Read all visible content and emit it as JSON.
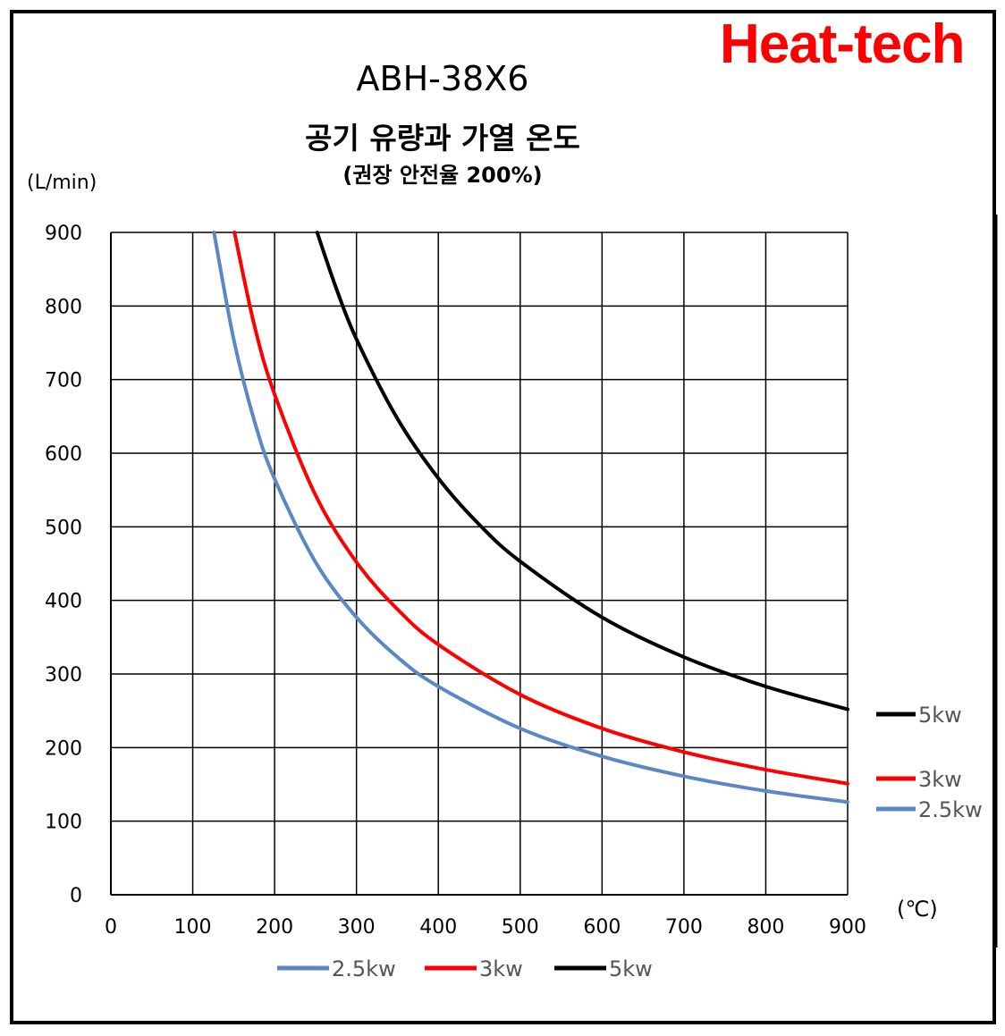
{
  "brand": "Heat-tech",
  "chart_data": {
    "type": "line",
    "title": "ABH-38X6",
    "subtitle": "공기 유량과 가열 온도",
    "subtitle2": "(권장 안전율 200%)",
    "ylabel": "(L/min)",
    "xlabel": "(℃)",
    "xlim": [
      0,
      900
    ],
    "ylim": [
      0,
      900
    ],
    "xticks": [
      "0",
      "100",
      "200",
      "300",
      "400",
      "500",
      "600",
      "700",
      "800",
      "900"
    ],
    "yticks": [
      "0",
      "100",
      "200",
      "300",
      "400",
      "500",
      "600",
      "700",
      "800",
      "900"
    ],
    "grid": true,
    "series": [
      {
        "name": "2.5kw",
        "color": "#5b87c5",
        "x": [
          126,
          150,
          175,
          200,
          250,
          300,
          350,
          400,
          500,
          600,
          700,
          800,
          900
        ],
        "y": [
          900,
          755,
          645,
          565,
          452,
          377,
          323,
          283,
          226,
          188,
          161,
          141,
          126
        ]
      },
      {
        "name": "3kw",
        "color": "#ff0000",
        "x": [
          151,
          175,
          200,
          250,
          300,
          350,
          400,
          500,
          600,
          700,
          800,
          900
        ],
        "y": [
          900,
          775,
          680,
          543,
          452,
          388,
          340,
          272,
          226,
          194,
          170,
          151
        ]
      },
      {
        "name": "5kw",
        "color": "#000000",
        "x": [
          252,
          275,
          300,
          350,
          400,
          450,
          500,
          600,
          700,
          800,
          900
        ],
        "y": [
          900,
          825,
          755,
          647,
          566,
          503,
          453,
          377,
          323,
          283,
          252
        ]
      }
    ],
    "end_labels": [
      "5kw",
      "3kw",
      "2.5kw"
    ],
    "legend": [
      "2.5kw",
      "3kw",
      "5kw"
    ],
    "legend_position": "bottom"
  }
}
